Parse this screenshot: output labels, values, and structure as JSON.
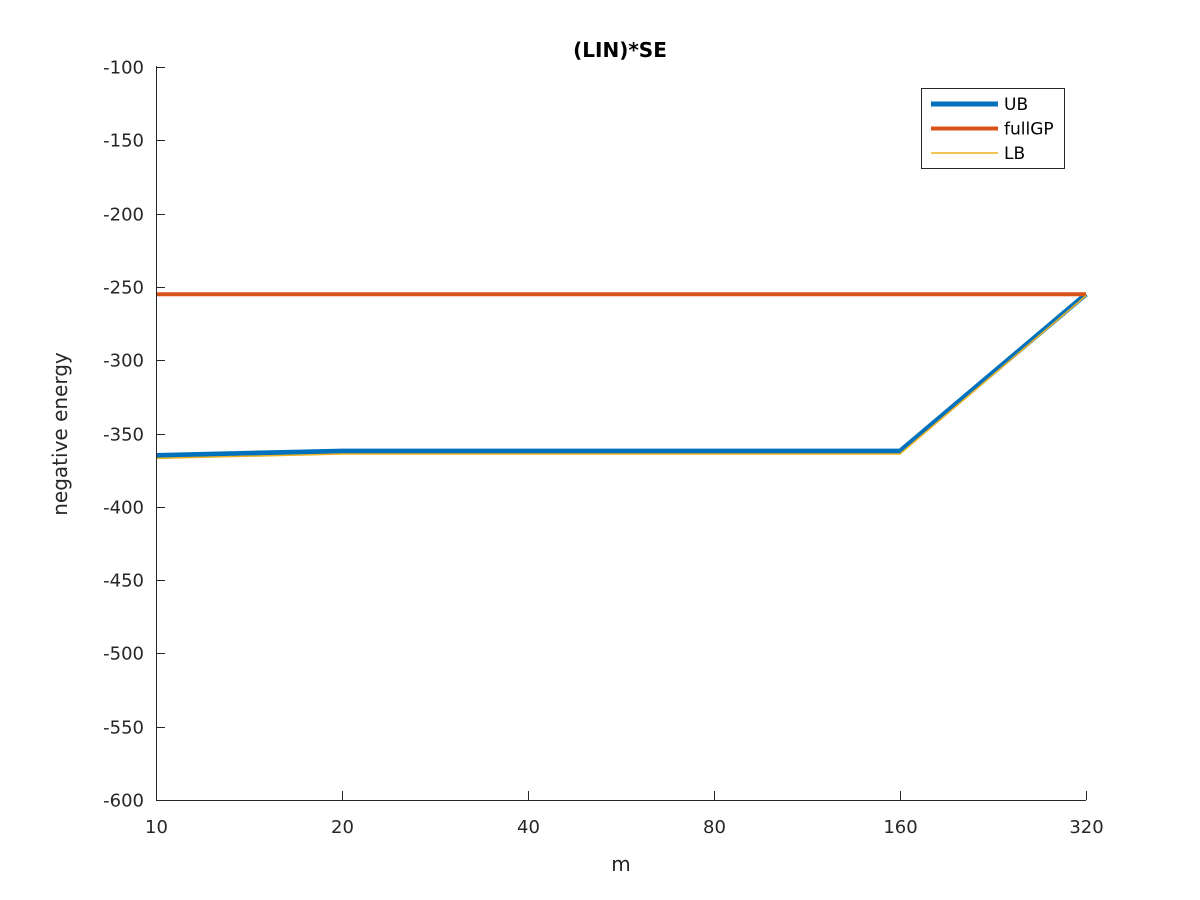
{
  "chart_data": {
    "type": "line",
    "title": "(LIN)*SE",
    "xlabel": "m",
    "ylabel": "negative energy",
    "x": [
      10,
      20,
      40,
      80,
      160,
      320
    ],
    "x_tick_labels": [
      "10",
      "20",
      "40",
      "80",
      "160",
      "320"
    ],
    "x_scale": "log2",
    "ylim": [
      -600,
      -100
    ],
    "y_ticks": [
      -100,
      -150,
      -200,
      -250,
      -300,
      -350,
      -400,
      -450,
      -500,
      -550,
      -600
    ],
    "y_tick_labels": [
      "-100",
      "-150",
      "-200",
      "-250",
      "-300",
      "-350",
      "-400",
      "-450",
      "-500",
      "-550",
      "-600"
    ],
    "grid": false,
    "legend_position": "top-right",
    "series": [
      {
        "name": "UB",
        "color": "#0072BD",
        "values": [
          -365,
          -362,
          -362,
          -362,
          -362,
          -255
        ]
      },
      {
        "name": "fullGP",
        "color": "#D95319",
        "values": [
          -255,
          -255,
          -255,
          -255,
          -255,
          -255
        ]
      },
      {
        "name": "LB",
        "color": "#EDB120",
        "values": [
          -367,
          -364,
          -364,
          -364,
          -364,
          -256
        ]
      }
    ]
  }
}
